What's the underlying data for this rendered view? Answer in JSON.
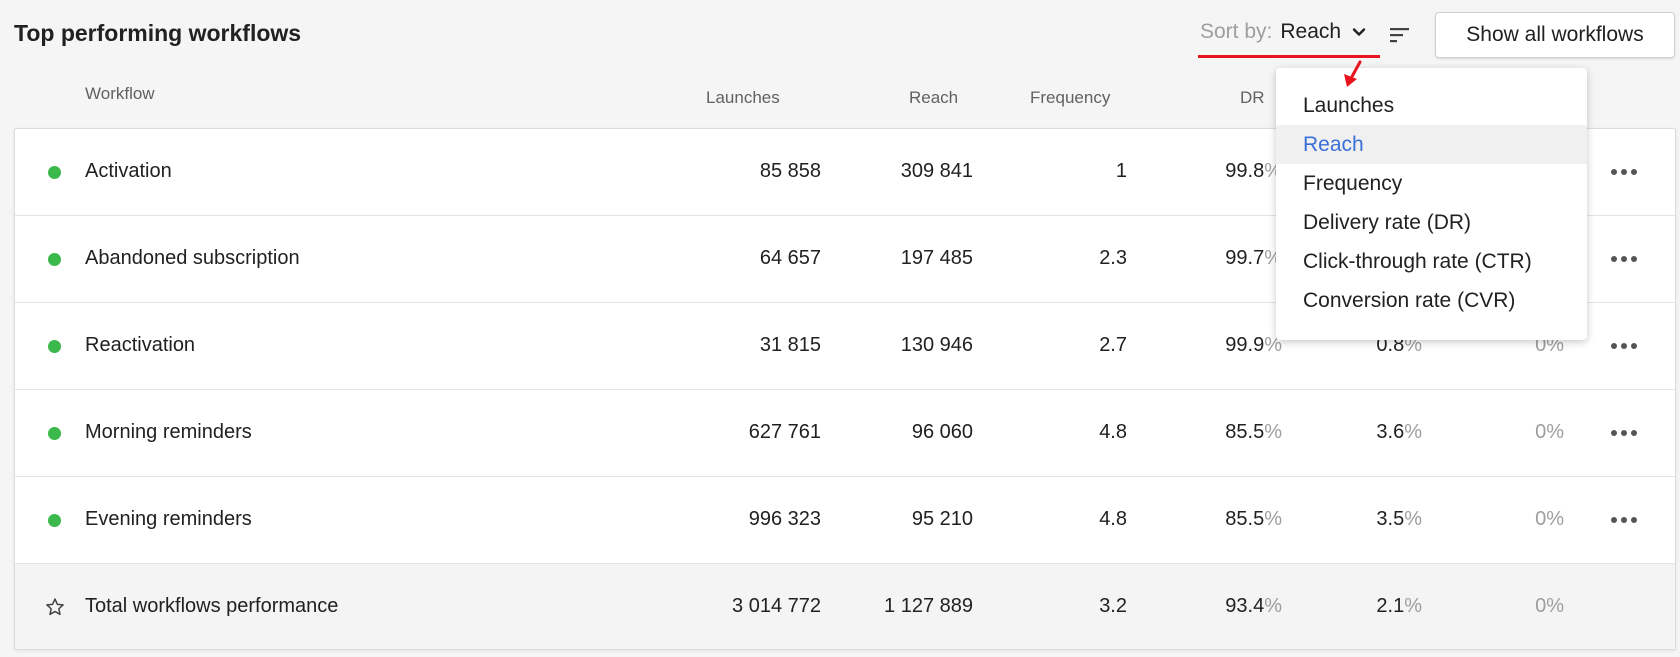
{
  "header": {
    "title": "Top performing workflows",
    "sort_label": "Sort by:",
    "sort_value": "Reach",
    "show_all_label": "Show all workflows"
  },
  "columns": {
    "workflow": "Workflow",
    "launches": "Launches",
    "reach": "Reach",
    "frequency": "Frequency",
    "dr": "DR"
  },
  "rows": [
    {
      "name": "Activation",
      "launches": "85 858",
      "reach": "309 841",
      "frequency": "1",
      "dr": "99.8",
      "ctr": "",
      "cvr": ""
    },
    {
      "name": "Abandoned subscription",
      "launches": "64 657",
      "reach": "197 485",
      "frequency": "2.3",
      "dr": "99.7",
      "ctr": "",
      "cvr": ""
    },
    {
      "name": "Reactivation",
      "launches": "31 815",
      "reach": "130 946",
      "frequency": "2.7",
      "dr": "99.9",
      "ctr": "0.8",
      "cvr": "0%"
    },
    {
      "name": "Morning reminders",
      "launches": "627 761",
      "reach": "96 060",
      "frequency": "4.8",
      "dr": "85.5",
      "ctr": "3.6",
      "cvr": "0%"
    },
    {
      "name": "Evening reminders",
      "launches": "996 323",
      "reach": "95 210",
      "frequency": "4.8",
      "dr": "85.5",
      "ctr": "3.5",
      "cvr": "0%"
    }
  ],
  "total": {
    "name": "Total workflows performance",
    "launches": "3 014 772",
    "reach": "1 127 889",
    "frequency": "3.2",
    "dr": "93.4",
    "ctr": "2.1",
    "cvr": "0%"
  },
  "percent_sign": "%",
  "sort_menu": {
    "items": [
      "Launches",
      "Reach",
      "Frequency",
      "Delivery rate (DR)",
      "Click-through rate (CTR)",
      "Conversion rate (CVR)"
    ],
    "selected": "Reach"
  },
  "colors": {
    "status_active": "#3cb94c",
    "accent_selected": "#3a6fd8",
    "annotation_red": "#e8141e"
  }
}
